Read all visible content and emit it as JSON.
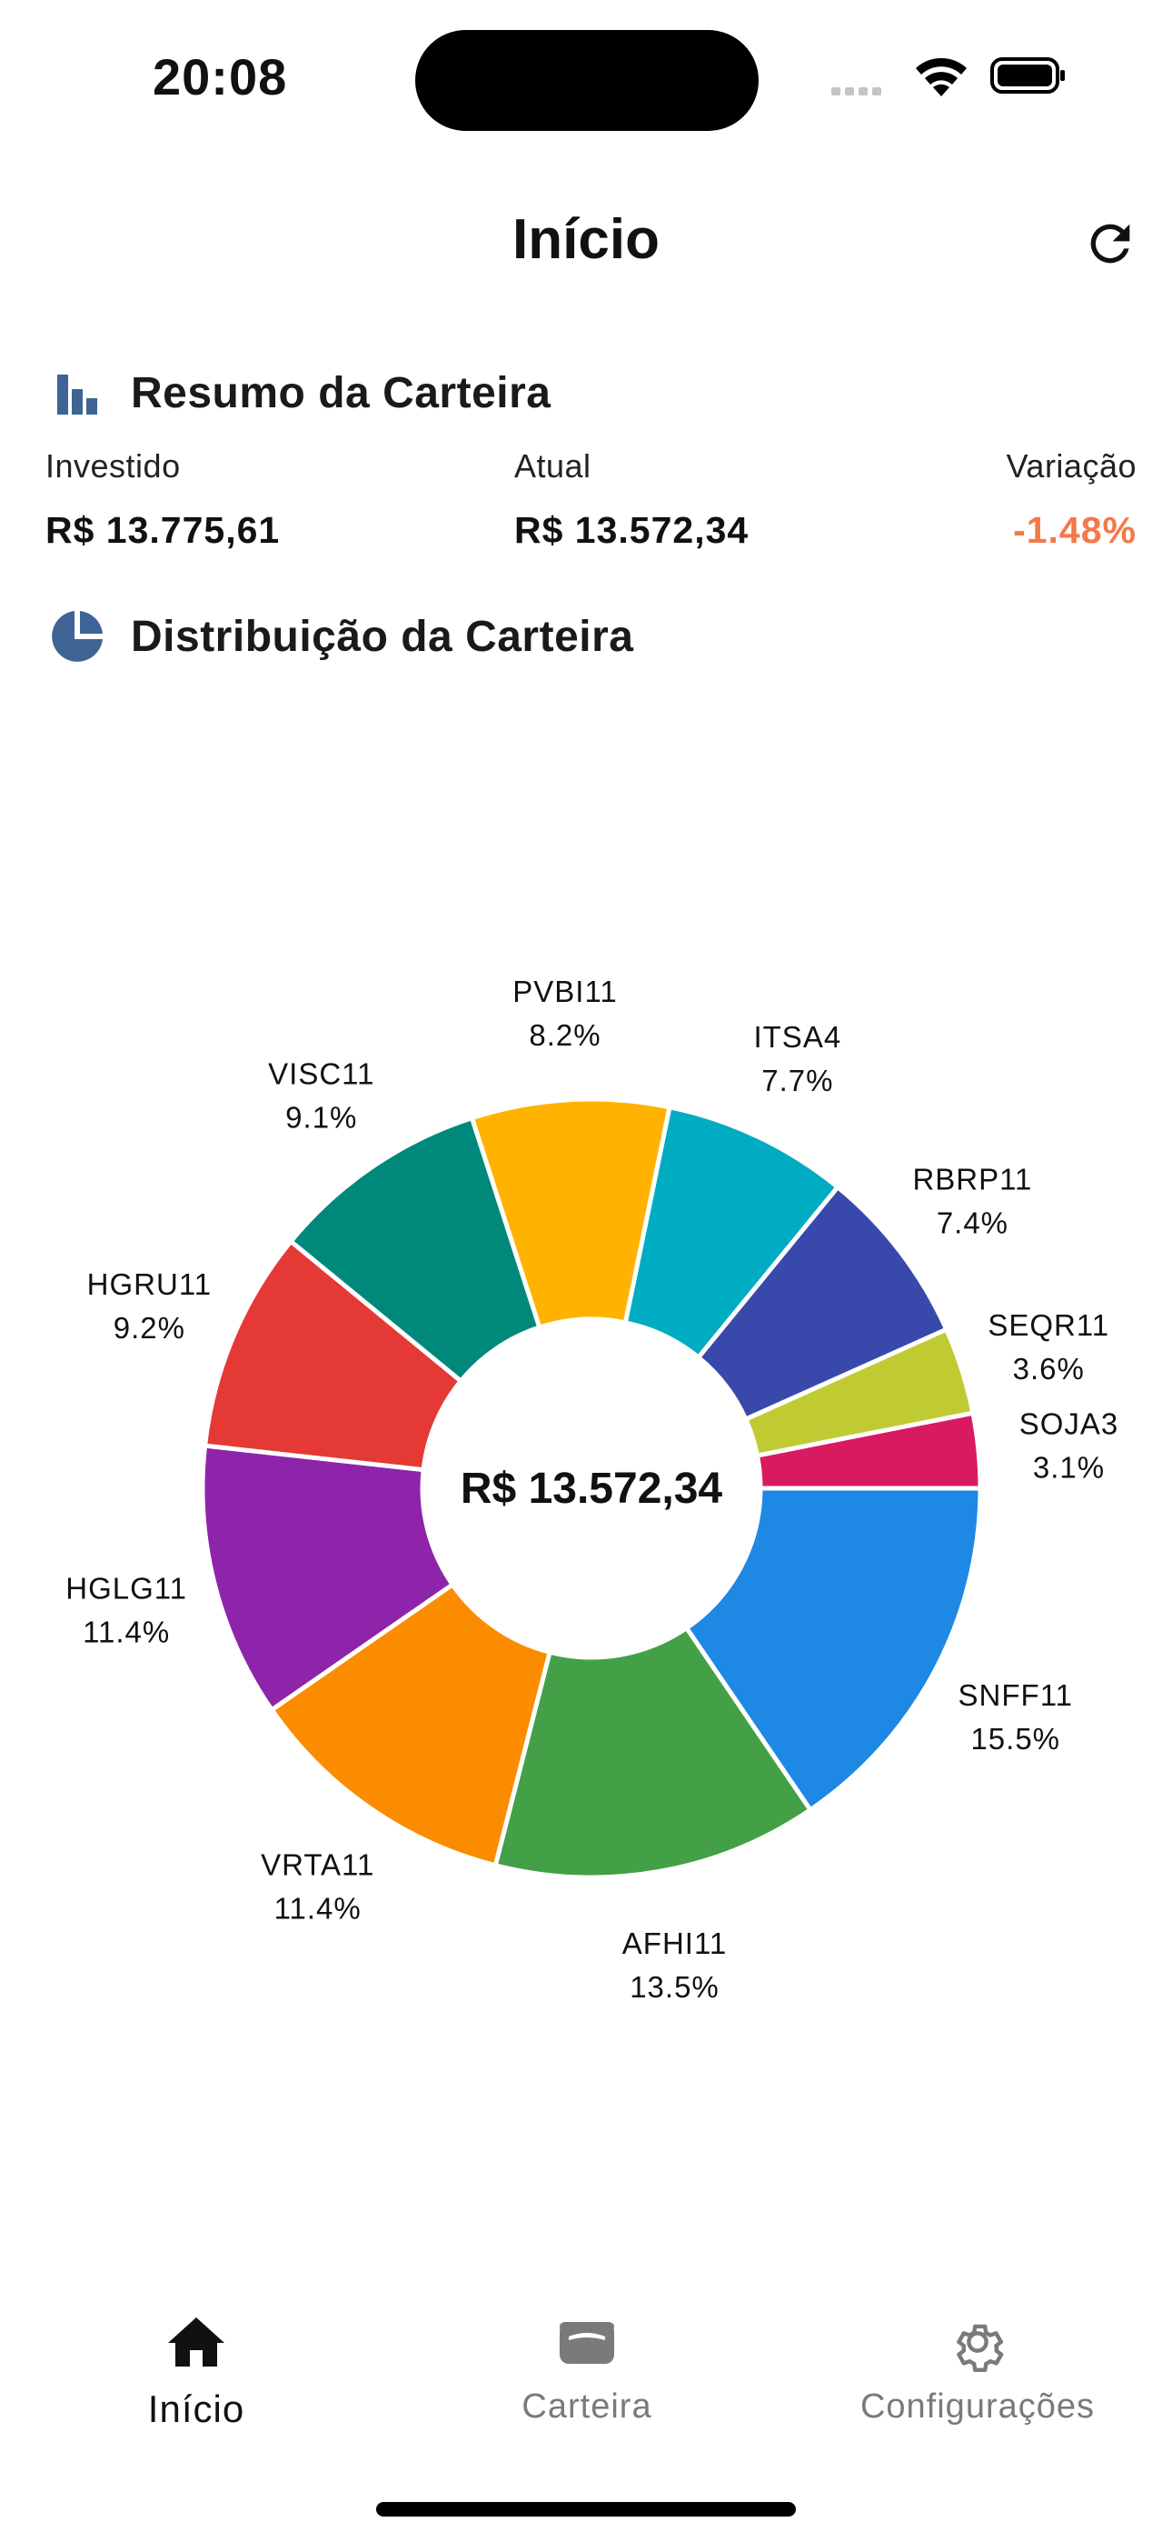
{
  "status_bar": {
    "time": "20:08"
  },
  "header": {
    "title": "Início",
    "refresh_icon": "refresh-icon"
  },
  "summary": {
    "title": "Resumo da Carteira",
    "icon": "bar-chart-icon",
    "invested_label": "Investido",
    "invested_value": "R$ 13.775,61",
    "current_label": "Atual",
    "current_value": "R$ 13.572,34",
    "variation_label": "Variação",
    "variation_value": "-1.48%",
    "variation_color": "#f5784a"
  },
  "distribution": {
    "title": "Distribuição da Carteira",
    "icon": "pie-chart-icon"
  },
  "chart_data": {
    "type": "pie",
    "center_label": "R$ 13.572,34",
    "slices": [
      {
        "name": "SNFF11",
        "percent_label": "15.5%",
        "value": 15.5,
        "color": "#1e88e5"
      },
      {
        "name": "AFHI11",
        "percent_label": "13.5%",
        "value": 13.5,
        "color": "#43a047"
      },
      {
        "name": "VRTA11",
        "percent_label": "11.4%",
        "value": 11.4,
        "color": "#fb8c00"
      },
      {
        "name": "HGLG11",
        "percent_label": "11.4%",
        "value": 11.4,
        "color": "#8e24aa"
      },
      {
        "name": "HGRU11",
        "percent_label": "9.2%",
        "value": 9.2,
        "color": "#e53935"
      },
      {
        "name": "VISC11",
        "percent_label": "9.1%",
        "value": 9.1,
        "color": "#00897b"
      },
      {
        "name": "PVBI11",
        "percent_label": "8.2%",
        "value": 8.2,
        "color": "#ffb300"
      },
      {
        "name": "ITSA4",
        "percent_label": "7.7%",
        "value": 7.7,
        "color": "#00acc1"
      },
      {
        "name": "RBRP11",
        "percent_label": "7.4%",
        "value": 7.4,
        "color": "#3949ab"
      },
      {
        "name": "SEQR11",
        "percent_label": "3.6%",
        "value": 3.6,
        "color": "#c0ca33"
      },
      {
        "name": "SOJA3",
        "percent_label": "3.1%",
        "value": 3.1,
        "color": "#d81b60"
      }
    ]
  },
  "tabs": [
    {
      "label": "Início",
      "icon": "home-icon",
      "active": true
    },
    {
      "label": "Carteira",
      "icon": "wallet-icon",
      "active": false
    },
    {
      "label": "Configurações",
      "icon": "gear-icon",
      "active": false
    }
  ],
  "colors": {
    "accent": "#3d6494",
    "active_tab": "#111111",
    "inactive_tab": "#7a7a7a"
  }
}
